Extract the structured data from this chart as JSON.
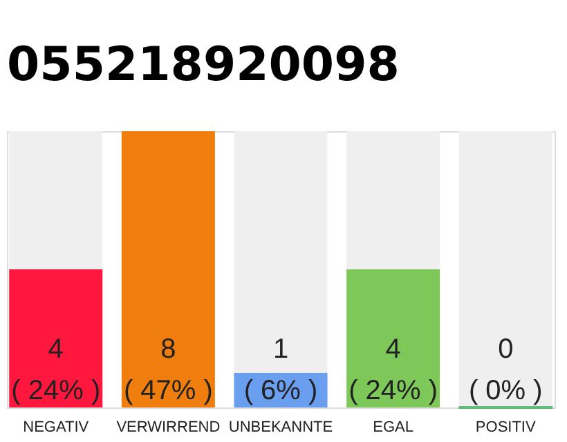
{
  "chart_data": {
    "type": "bar",
    "title": "055218920098",
    "categories": [
      "NEGATIV",
      "VERWIRREND",
      "UNBEKANNTE",
      "EGAL",
      "POSITIV"
    ],
    "values": [
      4,
      8,
      1,
      4,
      0
    ],
    "colors": [
      "#ff173d",
      "#f07e0e",
      "#6a9ff0",
      "#7ec85a",
      "#2aa84a"
    ],
    "ylim": [
      0,
      8
    ],
    "tick_labels": "x",
    "value_labels": [
      "4\n( 24% )",
      "8\n( 47% )",
      "1\n( 6% )",
      "4\n( 24% )",
      "0\n( 0% )"
    ]
  }
}
